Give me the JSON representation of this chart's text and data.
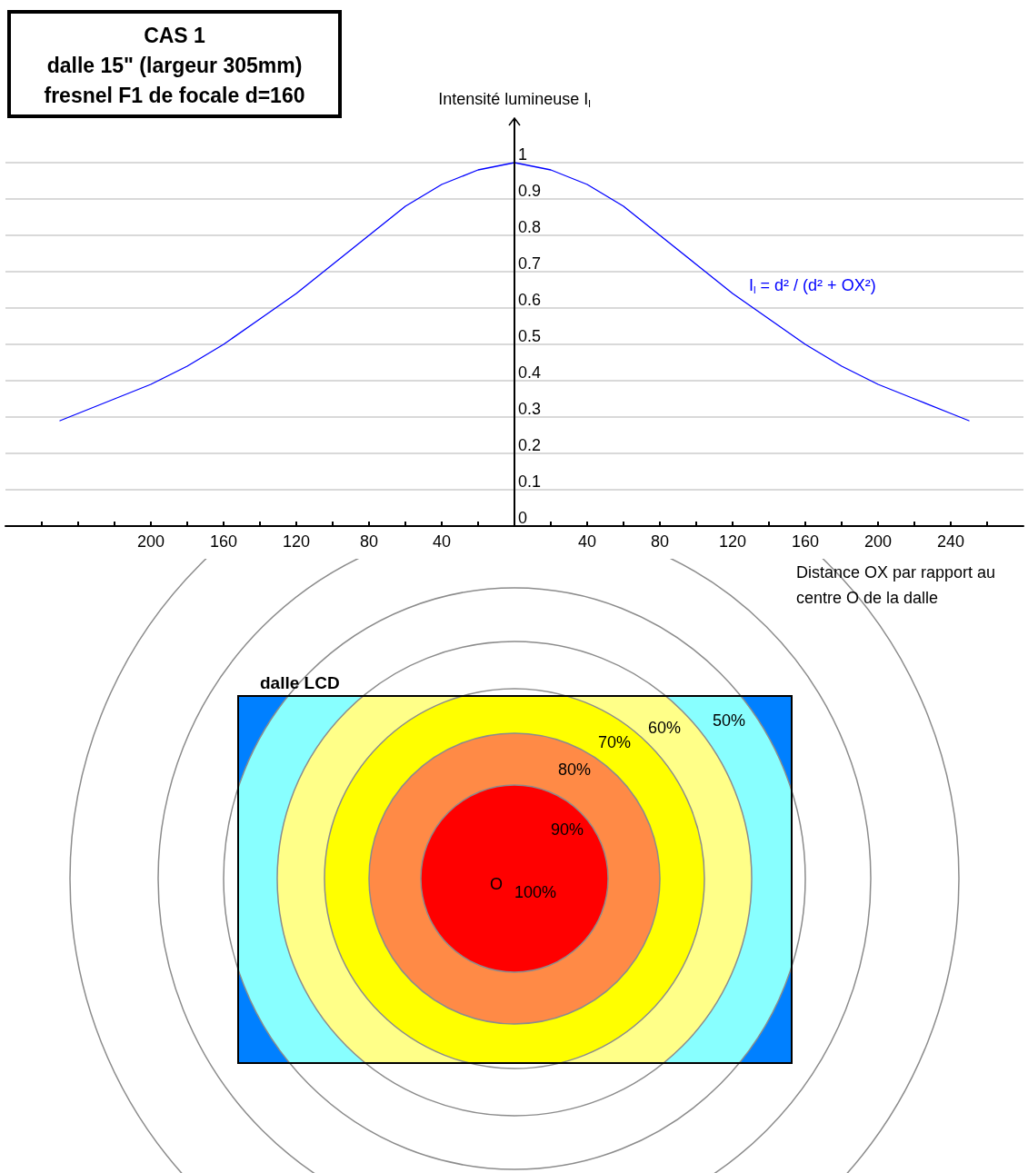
{
  "chart_data": [
    {
      "type": "line",
      "title": "CAS 1\ndalle 15\" (largeur 305mm)\nfresnel F1 de focale d=160",
      "ylabel": "Intensité lumineuse I$_{l}$",
      "xlabel": "Distance OX par rapport au centre O de la dalle",
      "x": [
        -250,
        -240,
        -220,
        -200,
        -180,
        -160,
        -140,
        -120,
        -100,
        -80,
        -60,
        -40,
        -20,
        0,
        20,
        40,
        60,
        80,
        100,
        120,
        140,
        160,
        180,
        200,
        220,
        240,
        250
      ],
      "series": [
        {
          "name": "I$_{l}$ = d² / (d² + OX²)",
          "color": "#0000ff",
          "values": [
            0.29,
            0.31,
            0.35,
            0.39,
            0.44,
            0.5,
            0.57,
            0.64,
            0.72,
            0.8,
            0.88,
            0.94,
            0.98,
            1,
            0.98,
            0.94,
            0.88,
            0.8,
            0.72,
            0.64,
            0.57,
            0.5,
            0.44,
            0.39,
            0.35,
            0.31,
            0.29
          ]
        }
      ],
      "xlim": [
        -280,
        280
      ],
      "ylim": [
        0,
        1
      ],
      "xticks": [
        {
          "value": -260,
          "label": null
        },
        {
          "value": -240,
          "label": null
        },
        {
          "value": -220,
          "label": null
        },
        {
          "value": -200,
          "label": "200"
        },
        {
          "value": -180,
          "label": null
        },
        {
          "value": -160,
          "label": "160"
        },
        {
          "value": -140,
          "label": null
        },
        {
          "value": -120,
          "label": "120"
        },
        {
          "value": -100,
          "label": null
        },
        {
          "value": -80,
          "label": "80"
        },
        {
          "value": -60,
          "label": null
        },
        {
          "value": -40,
          "label": "40"
        },
        {
          "value": -20,
          "label": null
        },
        {
          "value": 20,
          "label": null
        },
        {
          "value": 40,
          "label": "40"
        },
        {
          "value": 60,
          "label": null
        },
        {
          "value": 80,
          "label": "80"
        },
        {
          "value": 100,
          "label": null
        },
        {
          "value": 120,
          "label": "120"
        },
        {
          "value": 140,
          "label": null
        },
        {
          "value": 160,
          "label": "160"
        },
        {
          "value": 180,
          "label": null
        },
        {
          "value": 200,
          "label": "200"
        },
        {
          "value": 220,
          "label": null
        },
        {
          "value": 240,
          "label": "240"
        },
        {
          "value": 260,
          "label": null
        }
      ],
      "yticks": [
        0,
        0.1,
        0.2,
        0.3,
        0.4,
        0.5,
        0.6,
        0.7,
        0.8,
        0.9,
        1
      ],
      "grid": "y",
      "marker": "none",
      "line_style": "solid",
      "legend": false
    },
    {
      "type": "other",
      "title": "dalle LCD",
      "categories": [
        "100%",
        "90%",
        "80%",
        "70%",
        "60%",
        "50%",
        null
      ],
      "colors": [
        "#ff0000",
        "#ff8a46",
        "#ffff00",
        "#ffff88",
        "#88ffff",
        "#0080ff",
        "#0080ff"
      ],
      "annotations": [
        "O"
      ]
    }
  ]
}
